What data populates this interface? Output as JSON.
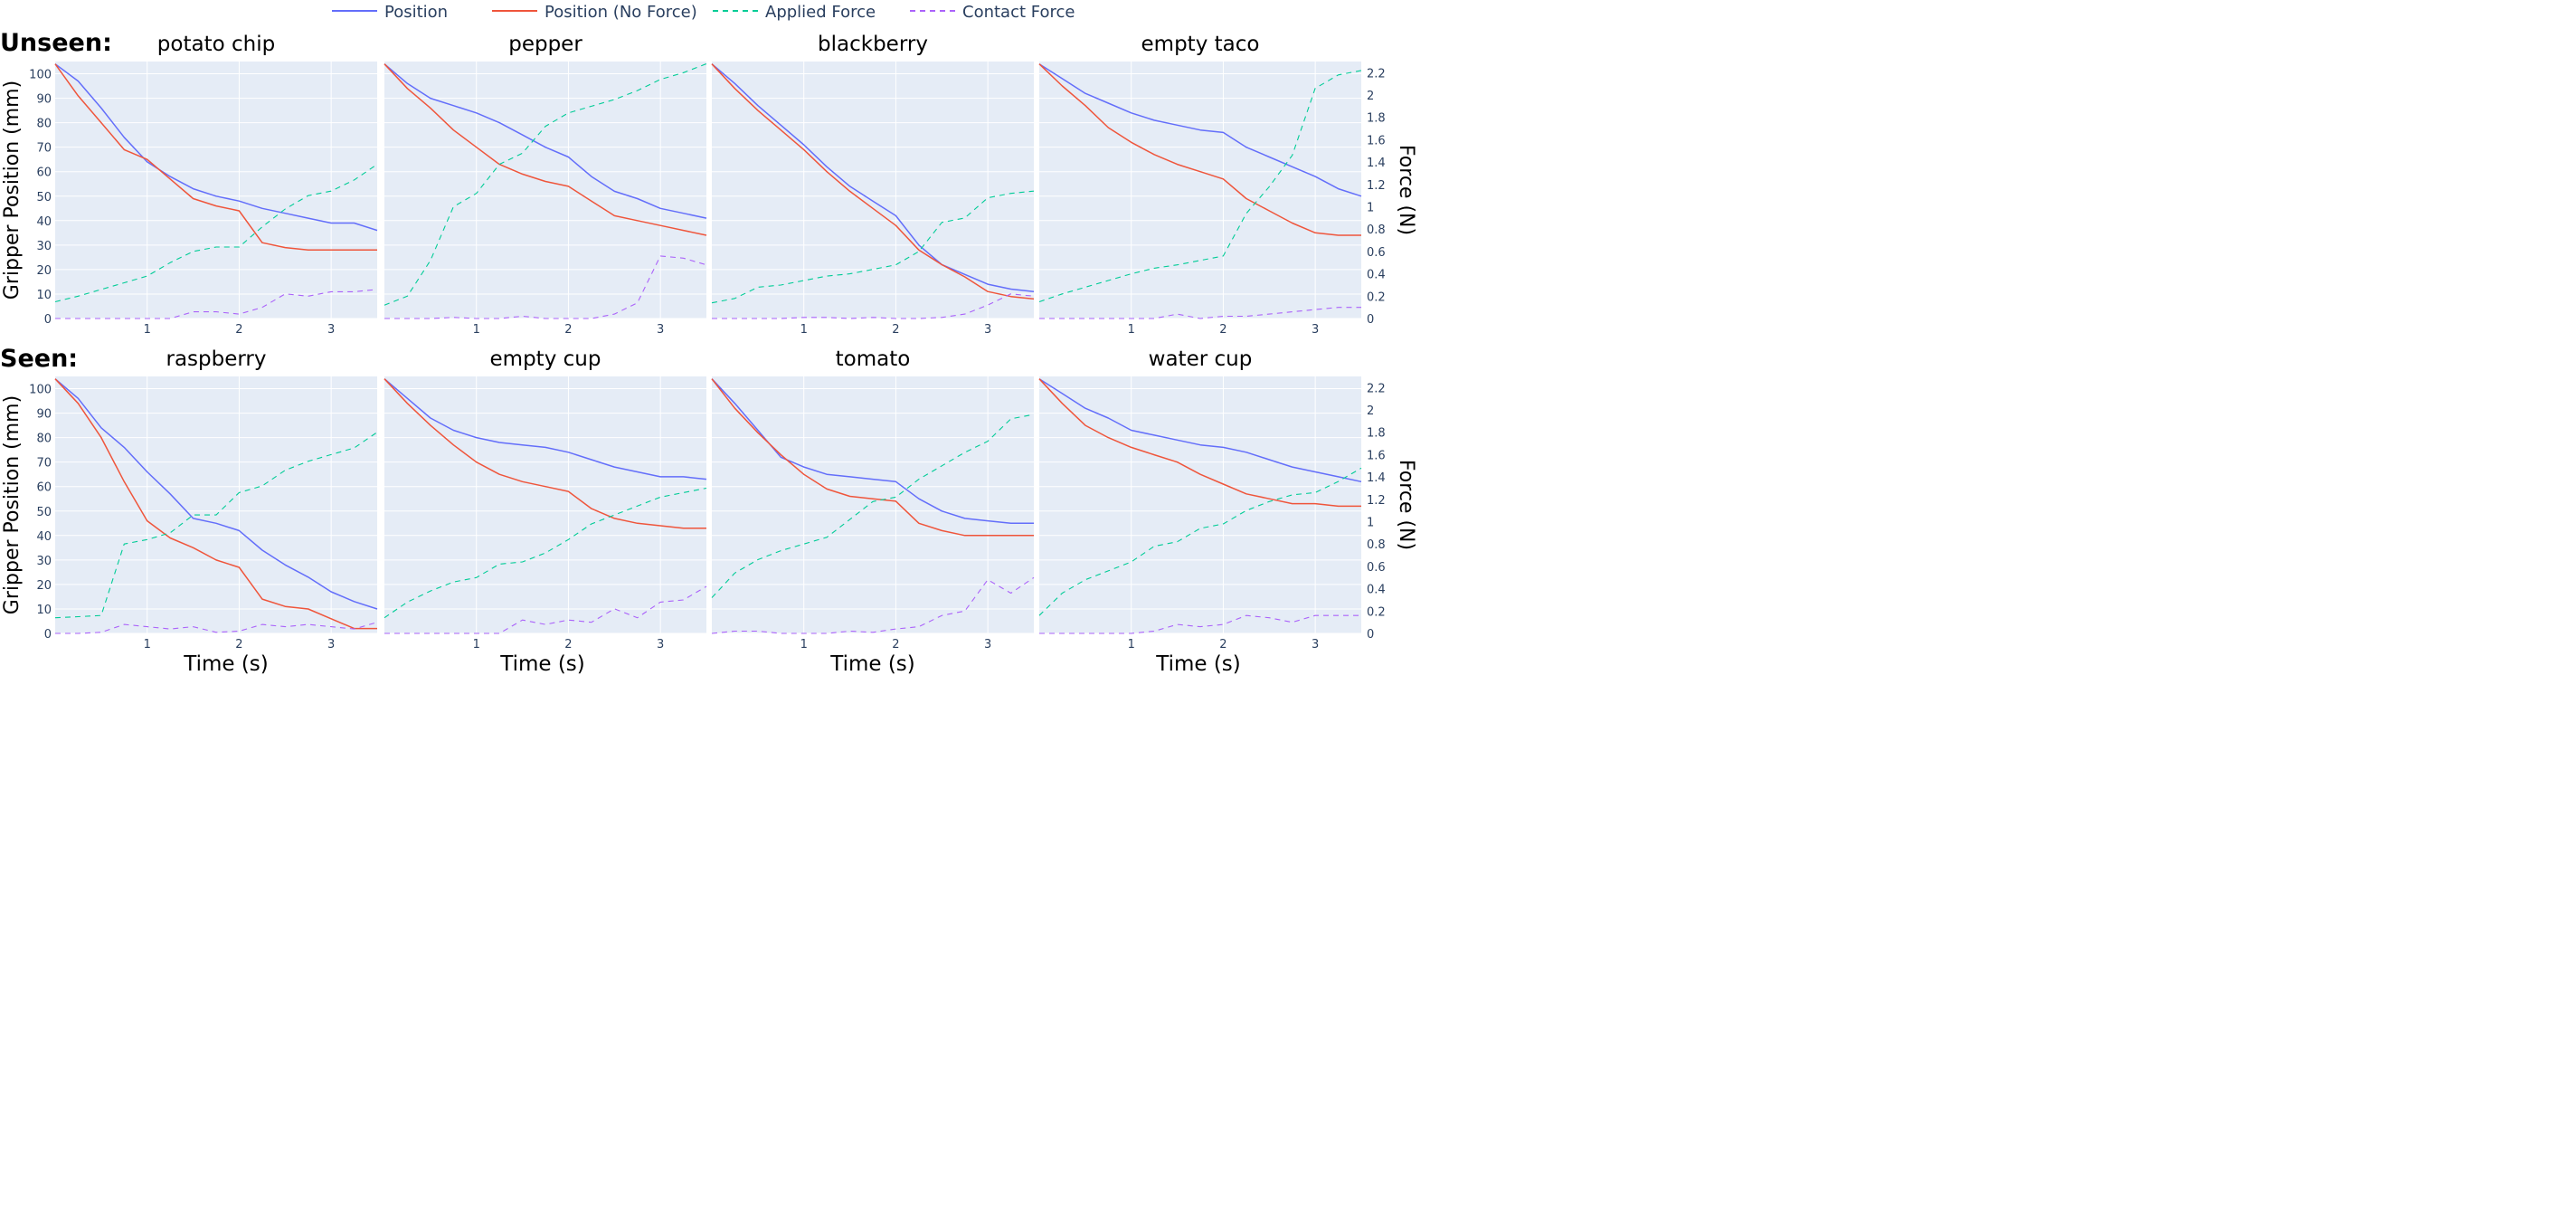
{
  "legend": [
    {
      "name": "Position",
      "color": "#636efa",
      "dash": "solid"
    },
    {
      "name": "Position (No Force)",
      "color": "#ef553b",
      "dash": "solid"
    },
    {
      "name": "Applied Force",
      "color": "#00cc96",
      "dash": "dash"
    },
    {
      "name": "Contact Force",
      "color": "#ab63fa",
      "dash": "dash"
    }
  ],
  "row_labels": [
    "Unseen:",
    "Seen:"
  ],
  "axes": {
    "x_title": "Time (s)",
    "y_left_title": "Gripper Position (mm)",
    "y_right_title": "Force (N)",
    "x_range": [
      0,
      3.5
    ],
    "x_ticks": [
      1,
      2,
      3
    ],
    "y_left_range": [
      0,
      105
    ],
    "y_left_ticks": [
      0,
      10,
      20,
      30,
      40,
      50,
      60,
      70,
      80,
      90,
      100
    ],
    "y_right_range": [
      0,
      2.3
    ],
    "y_right_ticks": [
      0,
      0.2,
      0.4,
      0.6,
      0.8,
      1,
      1.2,
      1.4,
      1.6,
      1.8,
      2,
      2.2
    ],
    "plot_bg": "#e5ecf6",
    "grid": true
  },
  "chart_data": [
    {
      "type": "line",
      "title": "potato chip",
      "row": 0,
      "col": 0,
      "x": [
        0,
        0.25,
        0.5,
        0.75,
        1,
        1.25,
        1.5,
        1.75,
        2,
        2.25,
        2.5,
        2.75,
        3,
        3.25,
        3.5
      ],
      "series": [
        {
          "name": "Position",
          "axis": "left",
          "values": [
            104,
            97,
            86,
            74,
            64,
            58,
            53,
            50,
            48,
            45,
            43,
            41,
            39,
            39,
            36
          ]
        },
        {
          "name": "Position (No Force)",
          "axis": "left",
          "values": [
            104,
            91,
            80,
            69,
            65,
            57,
            49,
            46,
            44,
            31,
            29,
            28,
            28,
            28,
            28
          ]
        },
        {
          "name": "Applied Force",
          "axis": "right",
          "values": [
            0.15,
            0.2,
            0.26,
            0.32,
            0.38,
            0.5,
            0.6,
            0.64,
            0.64,
            0.82,
            0.98,
            1.1,
            1.14,
            1.24,
            1.38
          ]
        },
        {
          "name": "Contact Force",
          "axis": "right",
          "values": [
            0,
            0,
            0,
            0,
            0,
            0,
            0.06,
            0.06,
            0.04,
            0.1,
            0.22,
            0.2,
            0.24,
            0.24,
            0.26
          ]
        }
      ]
    },
    {
      "type": "line",
      "title": "pepper",
      "row": 0,
      "col": 1,
      "x": [
        0,
        0.25,
        0.5,
        0.75,
        1,
        1.25,
        1.5,
        1.75,
        2,
        2.25,
        2.5,
        2.75,
        3,
        3.25,
        3.5
      ],
      "series": [
        {
          "name": "Position",
          "axis": "left",
          "values": [
            104,
            96,
            90,
            87,
            84,
            80,
            75,
            70,
            66,
            58,
            52,
            49,
            45,
            43,
            41
          ]
        },
        {
          "name": "Position (No Force)",
          "axis": "left",
          "values": [
            104,
            94,
            86,
            77,
            70,
            63,
            59,
            56,
            54,
            48,
            42,
            40,
            38,
            36,
            34
          ]
        },
        {
          "name": "Applied Force",
          "axis": "right",
          "values": [
            0.12,
            0.2,
            0.52,
            1.0,
            1.12,
            1.38,
            1.48,
            1.72,
            1.84,
            1.9,
            1.96,
            2.04,
            2.14,
            2.2,
            2.28
          ]
        },
        {
          "name": "Contact Force",
          "axis": "right",
          "values": [
            0,
            0,
            0,
            0.01,
            0,
            0,
            0.02,
            0,
            0,
            0,
            0.04,
            0.14,
            0.56,
            0.54,
            0.48
          ]
        }
      ]
    },
    {
      "type": "line",
      "title": "blackberry",
      "row": 0,
      "col": 2,
      "x": [
        0,
        0.25,
        0.5,
        0.75,
        1,
        1.25,
        1.5,
        1.75,
        2,
        2.25,
        2.5,
        2.75,
        3,
        3.25,
        3.5
      ],
      "series": [
        {
          "name": "Position",
          "axis": "left",
          "values": [
            104,
            96,
            87,
            79,
            71,
            62,
            54,
            48,
            42,
            30,
            22,
            18,
            14,
            12,
            11
          ]
        },
        {
          "name": "Position (No Force)",
          "axis": "left",
          "values": [
            104,
            94,
            85,
            77,
            69,
            60,
            52,
            45,
            38,
            28,
            22,
            17,
            11,
            9,
            8
          ]
        },
        {
          "name": "Applied Force",
          "axis": "right",
          "values": [
            0.14,
            0.18,
            0.28,
            0.3,
            0.34,
            0.38,
            0.4,
            0.44,
            0.48,
            0.6,
            0.86,
            0.9,
            1.08,
            1.12,
            1.14
          ]
        },
        {
          "name": "Contact Force",
          "axis": "right",
          "values": [
            0,
            0,
            0,
            0,
            0.01,
            0.01,
            0,
            0.01,
            0,
            0,
            0.01,
            0.04,
            0.12,
            0.22,
            0.2
          ]
        }
      ]
    },
    {
      "type": "line",
      "title": "empty taco",
      "row": 0,
      "col": 3,
      "x": [
        0,
        0.25,
        0.5,
        0.75,
        1,
        1.25,
        1.5,
        1.75,
        2,
        2.25,
        2.5,
        2.75,
        3,
        3.25,
        3.5
      ],
      "series": [
        {
          "name": "Position",
          "axis": "left",
          "values": [
            104,
            98,
            92,
            88,
            84,
            81,
            79,
            77,
            76,
            70,
            66,
            62,
            58,
            53,
            50
          ]
        },
        {
          "name": "Position (No Force)",
          "axis": "left",
          "values": [
            104,
            95,
            87,
            78,
            72,
            67,
            63,
            60,
            57,
            49,
            44,
            39,
            35,
            34,
            34
          ]
        },
        {
          "name": "Applied Force",
          "axis": "right",
          "values": [
            0.15,
            0.22,
            0.28,
            0.34,
            0.4,
            0.45,
            0.48,
            0.52,
            0.56,
            0.94,
            1.18,
            1.46,
            2.06,
            2.18,
            2.22
          ]
        },
        {
          "name": "Contact Force",
          "axis": "right",
          "values": [
            0,
            0,
            0,
            0,
            0,
            0,
            0.04,
            0,
            0.02,
            0.02,
            0.04,
            0.06,
            0.08,
            0.1,
            0.1
          ]
        }
      ]
    },
    {
      "type": "line",
      "title": "raspberry",
      "row": 1,
      "col": 0,
      "x": [
        0,
        0.25,
        0.5,
        0.75,
        1,
        1.25,
        1.5,
        1.75,
        2,
        2.25,
        2.5,
        2.75,
        3,
        3.25,
        3.5
      ],
      "series": [
        {
          "name": "Position",
          "axis": "left",
          "values": [
            104,
            96,
            84,
            76,
            66,
            57,
            47,
            45,
            42,
            34,
            28,
            23,
            17,
            13,
            10
          ]
        },
        {
          "name": "Position (No Force)",
          "axis": "left",
          "values": [
            104,
            94,
            80,
            62,
            46,
            39,
            35,
            30,
            27,
            14,
            11,
            10,
            6,
            2,
            2
          ]
        },
        {
          "name": "Applied Force",
          "axis": "right",
          "values": [
            0.14,
            0.15,
            0.16,
            0.8,
            0.84,
            0.9,
            1.06,
            1.06,
            1.26,
            1.32,
            1.46,
            1.54,
            1.6,
            1.66,
            1.8
          ]
        },
        {
          "name": "Contact Force",
          "axis": "right",
          "values": [
            0,
            0,
            0.01,
            0.08,
            0.06,
            0.04,
            0.06,
            0.01,
            0.02,
            0.08,
            0.06,
            0.08,
            0.06,
            0.04,
            0.1
          ]
        }
      ]
    },
    {
      "type": "line",
      "title": "empty cup",
      "row": 1,
      "col": 1,
      "x": [
        0,
        0.25,
        0.5,
        0.75,
        1,
        1.25,
        1.5,
        1.75,
        2,
        2.25,
        2.5,
        2.75,
        3,
        3.25,
        3.5
      ],
      "series": [
        {
          "name": "Position",
          "axis": "left",
          "values": [
            104,
            96,
            88,
            83,
            80,
            78,
            77,
            76,
            74,
            71,
            68,
            66,
            64,
            64,
            63
          ]
        },
        {
          "name": "Position (No Force)",
          "axis": "left",
          "values": [
            104,
            94,
            85,
            77,
            70,
            65,
            62,
            60,
            58,
            51,
            47,
            45,
            44,
            43,
            43
          ]
        },
        {
          "name": "Applied Force",
          "axis": "right",
          "values": [
            0.14,
            0.28,
            0.38,
            0.46,
            0.5,
            0.62,
            0.64,
            0.72,
            0.84,
            0.98,
            1.06,
            1.14,
            1.22,
            1.26,
            1.3
          ]
        },
        {
          "name": "Contact Force",
          "axis": "right",
          "values": [
            0,
            0,
            0,
            0,
            0,
            0,
            0.12,
            0.08,
            0.12,
            0.1,
            0.22,
            0.14,
            0.28,
            0.3,
            0.42
          ]
        }
      ]
    },
    {
      "type": "line",
      "title": "tomato",
      "row": 1,
      "col": 2,
      "x": [
        0,
        0.25,
        0.5,
        0.75,
        1,
        1.25,
        1.5,
        1.75,
        2,
        2.25,
        2.5,
        2.75,
        3,
        3.25,
        3.5
      ],
      "series": [
        {
          "name": "Position",
          "axis": "left",
          "values": [
            104,
            94,
            83,
            72,
            68,
            65,
            64,
            63,
            62,
            55,
            50,
            47,
            46,
            45,
            45
          ]
        },
        {
          "name": "Position (No Force)",
          "axis": "left",
          "values": [
            104,
            92,
            82,
            73,
            65,
            59,
            56,
            55,
            54,
            45,
            42,
            40,
            40,
            40,
            40
          ]
        },
        {
          "name": "Applied Force",
          "axis": "right",
          "values": [
            0.32,
            0.54,
            0.66,
            0.74,
            0.8,
            0.86,
            1.02,
            1.18,
            1.22,
            1.38,
            1.5,
            1.62,
            1.72,
            1.92,
            1.96
          ]
        },
        {
          "name": "Contact Force",
          "axis": "right",
          "values": [
            0,
            0.02,
            0.02,
            0,
            0,
            0,
            0.02,
            0.01,
            0.04,
            0.06,
            0.16,
            0.2,
            0.48,
            0.36,
            0.5
          ]
        }
      ]
    },
    {
      "type": "line",
      "title": "water cup",
      "row": 1,
      "col": 3,
      "x": [
        0,
        0.25,
        0.5,
        0.75,
        1,
        1.25,
        1.5,
        1.75,
        2,
        2.25,
        2.5,
        2.75,
        3,
        3.25,
        3.5
      ],
      "series": [
        {
          "name": "Position",
          "axis": "left",
          "values": [
            104,
            98,
            92,
            88,
            83,
            81,
            79,
            77,
            76,
            74,
            71,
            68,
            66,
            64,
            62
          ]
        },
        {
          "name": "Position (No Force)",
          "axis": "left",
          "values": [
            104,
            94,
            85,
            80,
            76,
            73,
            70,
            65,
            61,
            57,
            55,
            53,
            53,
            52,
            52
          ]
        },
        {
          "name": "Applied Force",
          "axis": "right",
          "values": [
            0.16,
            0.36,
            0.48,
            0.56,
            0.64,
            0.78,
            0.82,
            0.94,
            0.98,
            1.1,
            1.18,
            1.24,
            1.26,
            1.36,
            1.48
          ]
        },
        {
          "name": "Contact Force",
          "axis": "right",
          "values": [
            0,
            0,
            0,
            0,
            0,
            0.02,
            0.08,
            0.06,
            0.08,
            0.16,
            0.14,
            0.1,
            0.16,
            0.16,
            0.16
          ]
        }
      ]
    }
  ]
}
